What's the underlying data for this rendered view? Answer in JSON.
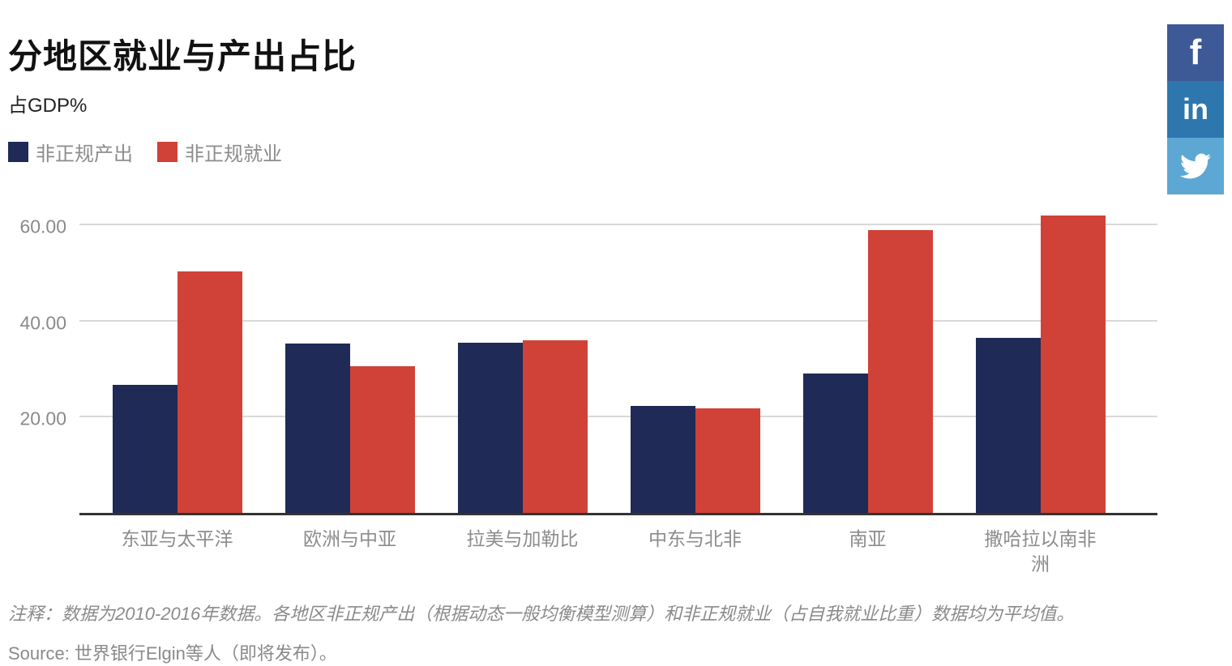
{
  "header": {
    "title": "分地区就业与产出占比",
    "subtitle": "占GDP%"
  },
  "social": {
    "facebook_label": "f",
    "linkedin_label": "in",
    "colors": {
      "facebook": "#3d5a96",
      "linkedin": "#2e76ae",
      "twitter": "#5da7d4"
    }
  },
  "chart_data": {
    "type": "bar",
    "title": "分地区就业与产出占比",
    "subtitle": "占GDP%",
    "categories": [
      "东亚与太平洋",
      "欧洲与中亚",
      "拉美与加勒比",
      "中东与北非",
      "南亚",
      "撒哈拉以南非洲"
    ],
    "series": [
      {
        "name": "非正规产出",
        "color": "#1f2a56",
        "values": [
          26.7,
          35.2,
          35.5,
          22.3,
          29.0,
          36.5
        ]
      },
      {
        "name": "非正规就业",
        "color": "#d04237",
        "values": [
          50.3,
          30.6,
          35.9,
          21.7,
          58.9,
          61.9
        ]
      }
    ],
    "yticks": [
      {
        "value": 20,
        "label": "20.00"
      },
      {
        "value": 40,
        "label": "40.00"
      },
      {
        "value": 60,
        "label": "60.00"
      }
    ],
    "ylim": [
      0,
      67.5
    ],
    "grid": true,
    "legend_position": "top-left",
    "axis_color": "#333333",
    "grid_color": "#d9d9d9"
  },
  "footer": {
    "note": "注释：数据为2010-2016年数据。各地区非正规产出（根据动态一般均衡模型测算）和非正规就业（占自我就业比重）数据均为平均值。",
    "source": "Source: 世界银行Elgin等人（即将发布）。"
  }
}
